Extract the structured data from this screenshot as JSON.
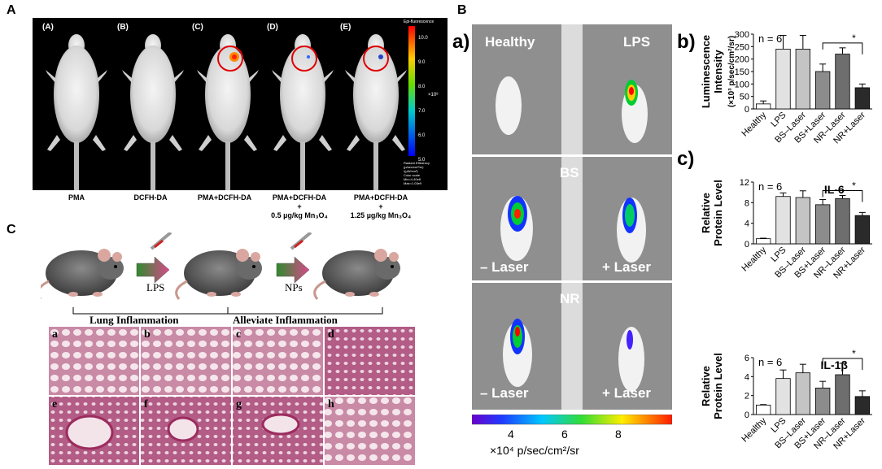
{
  "panels": {
    "A": "A",
    "B": "B",
    "C": "C"
  },
  "panelA": {
    "mouse_labels": [
      "(A)",
      "(B)",
      "(C)",
      "(D)",
      "(E)"
    ],
    "captions": [
      [
        "PMA"
      ],
      [
        "DCFH-DA"
      ],
      [
        "PMA+DCFH-DA"
      ],
      [
        "PMA+DCFH-DA",
        "+",
        "0.5 µg/kg Mn₃O₄"
      ],
      [
        "PMA+DCFH-DA",
        "+",
        "1.25 µg/kg Mn₃O₄"
      ]
    ],
    "colorbar": {
      "title": "Epi-fluorescence",
      "ticks": [
        "10.0",
        "9.0",
        "8.0",
        "7.0",
        "6.0",
        "5.0"
      ],
      "unit": "×10⁸",
      "footer": [
        "Radiant Efficiency",
        "(p/sec/cm²/sr)",
        "/(µW/cm²)",
        "Color scale",
        "Min=4.40e8",
        "Max=1.03e9"
      ]
    }
  },
  "panelB": {
    "sub_a": "a)",
    "sub_b": "b)",
    "sub_c": "c)",
    "tiles": [
      {
        "left": "Healthy",
        "right": "LPS"
      },
      {
        "center": "BS",
        "bl": "– Laser",
        "br": "+ Laser"
      },
      {
        "center": "NR",
        "bl": "– Laser",
        "br": "+ Laser"
      }
    ],
    "colorbar": {
      "ticks": [
        "4",
        "6",
        "8"
      ],
      "unit": "×10⁴ p/sec/cm²/sr"
    }
  },
  "panelC": {
    "arrow_labels": [
      "LPS",
      "NPs"
    ],
    "bracket_labels": [
      "Lung Inflammation",
      "Alleviate Inflammation"
    ],
    "histo_labels": [
      "a",
      "b",
      "c",
      "d",
      "e",
      "f",
      "g",
      "h"
    ]
  },
  "chart_data": [
    {
      "type": "bar",
      "title": "",
      "ylabel": "Luminescence Intensity (×10³ p/sec/cm²/sr)",
      "annotation": "n = 6",
      "significance": "*",
      "categories": [
        "Healthy",
        "LPS",
        "BS–Laser",
        "BS+Laser",
        "NR–Laser",
        "NR+Laser"
      ],
      "values": [
        20,
        240,
        240,
        150,
        220,
        85
      ],
      "errors": [
        12,
        55,
        55,
        30,
        25,
        15
      ],
      "ylim": [
        0,
        300
      ],
      "yticks": [
        "0",
        "50",
        "100",
        "150",
        "200",
        "250",
        "300"
      ]
    },
    {
      "type": "bar",
      "title": "IL-6",
      "ylabel": "Relative Protein Level",
      "annotation": "n = 6",
      "significance": "*",
      "categories": [
        "Healthy",
        "LPS",
        "BS–Laser",
        "BS+Laser",
        "NR–Laser",
        "NR+Laser"
      ],
      "values": [
        1,
        9.2,
        9,
        7.6,
        8.8,
        5.5
      ],
      "errors": [
        0.1,
        0.7,
        1.3,
        1.0,
        0.6,
        0.6
      ],
      "ylim": [
        0,
        12
      ],
      "yticks": [
        "0",
        "4",
        "8",
        "12"
      ]
    },
    {
      "type": "bar",
      "title": "IL-1β",
      "ylabel": "Relative Protein Level",
      "annotation": "n = 6",
      "significance": "*",
      "categories": [
        "Healthy",
        "LPS",
        "BS–Laser",
        "BS+Laser",
        "NR–Laser",
        "NR+Laser"
      ],
      "values": [
        1,
        3.8,
        4.4,
        2.8,
        4.2,
        1.9
      ],
      "errors": [
        0.05,
        0.9,
        0.9,
        0.7,
        1.2,
        0.6
      ],
      "ylim": [
        0,
        6
      ],
      "yticks": [
        "0",
        "2",
        "4",
        "6"
      ]
    }
  ]
}
